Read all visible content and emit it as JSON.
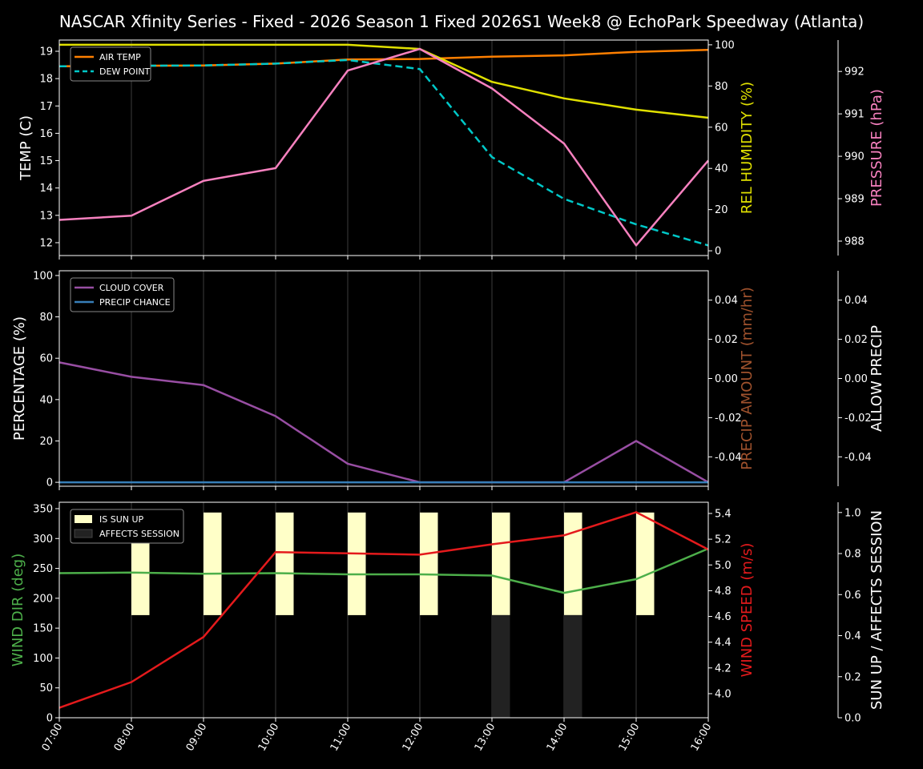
{
  "chart_data": {
    "title": "NASCAR Xfinity Series - Fixed - 2026 Season 1 Fixed  2026S1 Week8 @ EchoPark Speedway (Atlanta)",
    "type": "line",
    "x": [
      "07:00",
      "08:00",
      "09:00",
      "10:00",
      "11:00",
      "12:00",
      "13:00",
      "14:00",
      "15:00",
      "16:00"
    ],
    "panels": [
      {
        "axes": [
          {
            "label": "TEMP (C)",
            "color": "#ffffff",
            "side": "left",
            "range": [
              11.53,
              19.41
            ],
            "ticks": [
              12,
              13,
              14,
              15,
              16,
              17,
              18,
              19
            ]
          },
          {
            "label": "REL HUMIDITY (%)",
            "color": "#e0e000",
            "side": "right",
            "range": [
              -2.3,
              102.3
            ],
            "ticks": [
              0,
              20,
              40,
              60,
              80,
              100
            ]
          },
          {
            "label": "PRESSURE (hPa)",
            "color": "#f781bf",
            "side": "far-right",
            "range": [
              987.66,
              992.74
            ],
            "ticks": [
              988,
              989,
              990,
              991,
              992
            ]
          }
        ],
        "legend": "top-left",
        "series": [
          {
            "name": "AIR TEMP",
            "axis": 0,
            "color": "#ff7f00",
            "style": "solid",
            "values": [
              18.45,
              18.47,
              18.48,
              18.55,
              18.7,
              18.72,
              18.8,
              18.85,
              18.98,
              19.05
            ],
            "in_legend": true
          },
          {
            "name": "DEW POINT",
            "axis": 0,
            "color": "#00c8c8",
            "style": "dashed",
            "values": [
              18.45,
              18.47,
              18.48,
              18.55,
              18.68,
              18.35,
              15.13,
              13.6,
              12.67,
              11.9
            ],
            "in_legend": true
          },
          {
            "name": "",
            "axis": 1,
            "color": "#e0e000",
            "style": "solid",
            "values": [
              100,
              100,
              100,
              100,
              100,
              98,
              82,
              74,
              68.5,
              64.6
            ],
            "in_legend": false
          },
          {
            "name": "",
            "axis": 2,
            "color": "#f781bf",
            "style": "solid",
            "values": [
              988.5,
              988.6,
              989.42,
              989.72,
              992.02,
              992.53,
              991.6,
              990.3,
              987.9,
              989.9
            ],
            "in_legend": false
          }
        ]
      },
      {
        "axes": [
          {
            "label": "PERCENTAGE (%)",
            "color": "#ffffff",
            "side": "left",
            "range": [
              -1.9,
              102.3
            ],
            "ticks": [
              0,
              20,
              40,
              60,
              80,
              100
            ]
          },
          {
            "label": "PRECIP AMOUNT (mm/hr)",
            "color": "#a0522d",
            "side": "right",
            "range": [
              -0.055,
              0.055
            ],
            "ticks": [
              "-0.04",
              "-0.02",
              "0.00",
              "0.02",
              "0.04"
            ]
          },
          {
            "label": "ALLOW PRECIP",
            "color": "#ffffff",
            "side": "far-right",
            "range": [
              -0.055,
              0.055
            ],
            "ticks": [
              "-0.04",
              "-0.02",
              "0.00",
              "0.02",
              "0.04"
            ]
          }
        ],
        "legend": "top-left",
        "series": [
          {
            "name": "CLOUD COVER",
            "axis": 0,
            "color": "#984ea3",
            "style": "solid",
            "values": [
              58,
              51,
              47,
              32,
              9,
              0,
              0,
              0,
              20,
              0
            ],
            "in_legend": true
          },
          {
            "name": "PRECIP CHANCE",
            "axis": 0,
            "color": "#377eb8",
            "style": "solid",
            "values": [
              0,
              0,
              0,
              0,
              0,
              0,
              0,
              0,
              0,
              0
            ],
            "in_legend": true
          }
        ]
      },
      {
        "axes": [
          {
            "label": "WIND DIR (deg)",
            "color": "#4daf4a",
            "side": "left",
            "range": [
              0,
              360.7
            ],
            "ticks": [
              0,
              50,
              100,
              150,
              200,
              250,
              300,
              350
            ]
          },
          {
            "label": "WIND SPEED (m/s)",
            "color": "#e41a1c",
            "side": "right",
            "range": [
              3.813,
              5.487
            ],
            "ticks": [
              "4.0",
              "4.2",
              "4.4",
              "4.6",
              "4.8",
              "5.0",
              "5.2",
              "5.4"
            ]
          },
          {
            "label": "SUN UP / AFFECTS SESSION",
            "color": "#ffffff",
            "side": "far-right",
            "range": [
              0,
              1.05
            ],
            "ticks": [
              "0.0",
              "0.2",
              "0.4",
              "0.6",
              "0.8",
              "1.0"
            ]
          }
        ],
        "legend": "top-left",
        "bars": [
          {
            "name": "IS SUN UP",
            "axis": 2,
            "color": "#ffffc8",
            "values": [
              0,
              1,
              1,
              1,
              1,
              1,
              1,
              1,
              1,
              0
            ]
          },
          {
            "name": "AFFECTS SESSION",
            "axis": 2,
            "color": "#222222",
            "values": [
              0,
              0,
              0,
              0,
              0,
              0,
              1,
              1,
              0,
              0
            ]
          }
        ],
        "series": [
          {
            "name": "",
            "axis": 0,
            "color": "#4daf4a",
            "style": "solid",
            "values": [
              242,
              243,
              241,
              242,
              240,
              240,
              238,
              209,
              232,
              283
            ],
            "in_legend": false
          },
          {
            "name": "",
            "axis": 1,
            "color": "#e41a1c",
            "style": "solid",
            "values": [
              3.89,
              4.09,
              4.44,
              5.1,
              5.09,
              5.08,
              5.16,
              5.23,
              5.41,
              5.12
            ],
            "in_legend": false
          }
        ]
      }
    ]
  }
}
